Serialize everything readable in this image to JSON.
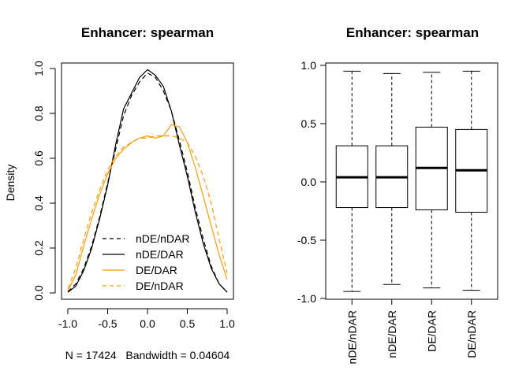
{
  "colors": {
    "black": "#000000",
    "orange": "#ff9900"
  },
  "chart_data": [
    {
      "type": "line",
      "title": "Enhancer: spearman",
      "xlabel": "N = 17424   Bandwidth = 0.04604",
      "ylabel": "Density",
      "xlim": [
        -1.0,
        1.0
      ],
      "ylim": [
        0.0,
        1.0
      ],
      "x_ticks": [
        "-1.0",
        "-0.5",
        "0.0",
        "0.5",
        "1.0"
      ],
      "y_ticks": [
        "0.0",
        "0.2",
        "0.4",
        "0.6",
        "0.8",
        "1.0"
      ],
      "legend": [
        {
          "label": "nDE/nDAR",
          "color": "#000000",
          "dash": true
        },
        {
          "label": "nDE/DAR",
          "color": "#000000",
          "dash": false
        },
        {
          "label": "DE/DAR",
          "color": "#ff9900",
          "dash": false
        },
        {
          "label": "DE/nDAR",
          "color": "#ff9900",
          "dash": true
        }
      ],
      "series": [
        {
          "name": "nDE/nDAR",
          "color": "#000000",
          "dash": true,
          "x": [
            -1.0,
            -0.9,
            -0.8,
            -0.7,
            -0.6,
            -0.5,
            -0.4,
            -0.3,
            -0.2,
            -0.1,
            0.0,
            0.1,
            0.2,
            0.3,
            0.4,
            0.5,
            0.6,
            0.7,
            0.8,
            0.9,
            1.0
          ],
          "y": [
            0.005,
            0.04,
            0.11,
            0.21,
            0.34,
            0.49,
            0.64,
            0.79,
            0.88,
            0.94,
            0.98,
            0.96,
            0.9,
            0.81,
            0.68,
            0.54,
            0.38,
            0.24,
            0.12,
            0.04,
            0.005
          ]
        },
        {
          "name": "nDE/DAR",
          "color": "#000000",
          "dash": false,
          "x": [
            -1.0,
            -0.9,
            -0.8,
            -0.7,
            -0.6,
            -0.5,
            -0.4,
            -0.3,
            -0.2,
            -0.1,
            0.0,
            0.1,
            0.2,
            0.3,
            0.4,
            0.5,
            0.6,
            0.7,
            0.8,
            0.9,
            1.0
          ],
          "y": [
            0.003,
            0.03,
            0.1,
            0.2,
            0.33,
            0.48,
            0.66,
            0.82,
            0.89,
            0.96,
            0.995,
            0.97,
            0.92,
            0.81,
            0.66,
            0.52,
            0.36,
            0.22,
            0.11,
            0.04,
            0.003
          ]
        },
        {
          "name": "DE/DAR",
          "color": "#ff9900",
          "dash": false,
          "x": [
            -1.0,
            -0.9,
            -0.8,
            -0.7,
            -0.6,
            -0.5,
            -0.4,
            -0.3,
            -0.2,
            -0.1,
            0.0,
            0.1,
            0.2,
            0.3,
            0.4,
            0.5,
            0.6,
            0.7,
            0.8,
            0.9,
            1.0
          ],
          "y": [
            0.01,
            0.08,
            0.21,
            0.33,
            0.44,
            0.53,
            0.6,
            0.64,
            0.67,
            0.69,
            0.7,
            0.69,
            0.7,
            0.75,
            0.74,
            0.67,
            0.56,
            0.43,
            0.3,
            0.17,
            0.06
          ]
        },
        {
          "name": "DE/nDAR",
          "color": "#ff9900",
          "dash": true,
          "x": [
            -1.0,
            -0.9,
            -0.8,
            -0.7,
            -0.6,
            -0.5,
            -0.4,
            -0.3,
            -0.2,
            -0.1,
            0.0,
            0.1,
            0.2,
            0.3,
            0.4,
            0.5,
            0.6,
            0.7,
            0.8,
            0.9,
            1.0
          ],
          "y": [
            0.02,
            0.11,
            0.24,
            0.36,
            0.46,
            0.55,
            0.61,
            0.65,
            0.67,
            0.69,
            0.69,
            0.7,
            0.7,
            0.7,
            0.69,
            0.67,
            0.61,
            0.52,
            0.4,
            0.24,
            0.09
          ]
        }
      ]
    },
    {
      "type": "box",
      "title": "Enhancer: spearman",
      "ylim": [
        -1.0,
        1.0
      ],
      "y_ticks": [
        "-1.0",
        "-0.5",
        "0.0",
        "0.5",
        "1.0"
      ],
      "categories": [
        "nDE/nDAR",
        "nDE/DAR",
        "DE/DAR",
        "DE/nDAR"
      ],
      "boxes": [
        {
          "name": "nDE/nDAR",
          "min": -0.94,
          "q1": -0.22,
          "median": 0.04,
          "q3": 0.31,
          "max": 0.95
        },
        {
          "name": "nDE/DAR",
          "min": -0.88,
          "q1": -0.22,
          "median": 0.04,
          "q3": 0.31,
          "max": 0.93
        },
        {
          "name": "DE/DAR",
          "min": -0.91,
          "q1": -0.24,
          "median": 0.12,
          "q3": 0.47,
          "max": 0.94
        },
        {
          "name": "DE/nDAR",
          "min": -0.93,
          "q1": -0.26,
          "median": 0.1,
          "q3": 0.45,
          "max": 0.95
        }
      ]
    }
  ]
}
